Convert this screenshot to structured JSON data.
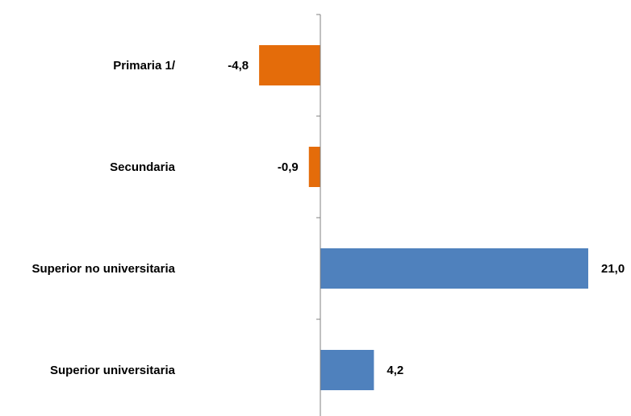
{
  "chart_data": {
    "type": "bar",
    "orientation": "horizontal",
    "categories": [
      "Primaria  1/",
      "Secundaria",
      "Superior no universitaria",
      "Superior universitaria"
    ],
    "values": [
      -4.8,
      -0.9,
      21.0,
      4.2
    ],
    "data_labels": [
      "-4,8",
      "-0,9",
      "21,0",
      "4,2"
    ],
    "title": "",
    "xlabel": "",
    "ylabel": "",
    "xlim": [
      -6,
      22
    ],
    "grid": false,
    "legend": "none",
    "colors": {
      "negative": "#E46C0A",
      "positive": "#4F81BD",
      "axis": "#808080"
    }
  }
}
